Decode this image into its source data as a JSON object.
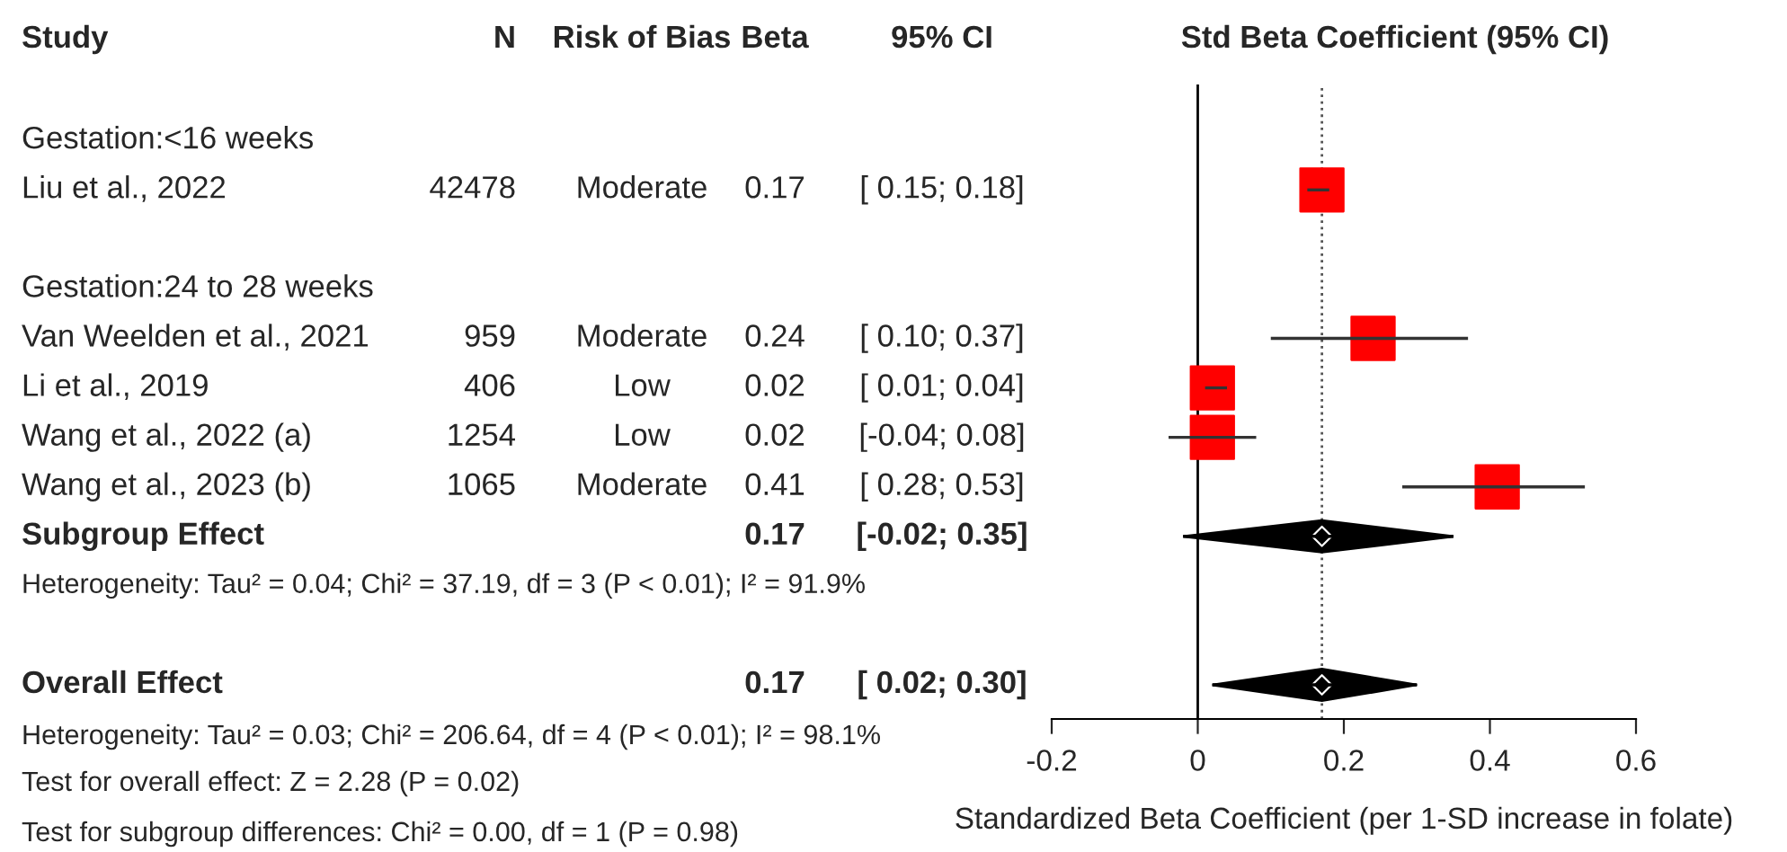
{
  "chart_data": {
    "type": "scatter",
    "orientation": "horizontal",
    "title": "Std Beta Coefficient (95% CI)",
    "ylabel": "Study",
    "xlabel": "Standardized Beta Coefficient (per 1-SD increase in folate)",
    "categories": [
      "Gestation:<16 weeks",
      "Liu et al., 2022",
      null,
      "Gestation:24 to 28 weeks",
      "Van Weelden et al., 2021",
      "Li et al., 2019",
      "Wang et al., 2022 (a)",
      "Wang et al., 2023 (b)",
      "Subgroup Effect",
      "Heterogeneity: Tau² = 0.04; Chi² = 37.19, df = 3 (P < 0.01); I² = 91.9%",
      null,
      "Overall Effect"
    ],
    "series": [
      {
        "marker": "square",
        "color": "#ff0000",
        "values": [
          null,
          0.17,
          null,
          null,
          0.24,
          0.02,
          0.02,
          0.41,
          null,
          null,
          null,
          null
        ],
        "errors": [
          null,
          [
            0.15,
            0.18
          ],
          null,
          null,
          [
            0.1,
            0.37
          ],
          [
            0.01,
            0.04
          ],
          [
            -0.04,
            0.08
          ],
          [
            0.28,
            0.53
          ],
          null,
          null,
          null,
          null
        ]
      },
      {
        "marker": "diamond",
        "color": "#000000",
        "values": [
          null,
          null,
          null,
          null,
          null,
          null,
          null,
          null,
          0.17,
          null,
          null,
          0.17
        ],
        "errors": [
          null,
          null,
          null,
          null,
          null,
          null,
          null,
          null,
          [
            -0.02,
            0.35
          ],
          null,
          null,
          [
            0.02,
            0.3
          ]
        ]
      }
    ],
    "xlim": [
      -0.2,
      0.6
    ],
    "xticks": [
      -0.2,
      0,
      0.2,
      0.4,
      0.6
    ],
    "ref_lines": [
      {
        "axis": "x",
        "value": 0,
        "color": "#000000",
        "line_style": "solid"
      },
      {
        "axis": "x",
        "value": 0.17,
        "color": "#555555",
        "line_style": "dotted"
      }
    ],
    "grid": false,
    "annotations": [
      "N",
      "Risk of Bias",
      "Beta",
      "95% CI",
      "42478",
      "Moderate",
      "0.17",
      "[ 0.15; 0.18]",
      "959",
      "Moderate",
      "0.24",
      "[ 0.10; 0.37]",
      "406",
      "Low",
      "0.02",
      "[ 0.01; 0.04]",
      "1254",
      "Low",
      "0.02",
      "[-0.04; 0.08]",
      "1065",
      "Moderate",
      "0.41",
      "[ 0.28; 0.53]",
      "0.17",
      "[-0.02; 0.35]",
      "0.17",
      "[ 0.02; 0.30]",
      "Heterogeneity: Tau² = 0.03; Chi² = 206.64, df = 4 (P < 0.01); I² = 98.1%",
      "Test for overall effect: Z = 2.28 (P = 0.02)",
      "Test for subgroup differences: Chi² = 0.00, df = 1 (P = 0.98)"
    ]
  }
}
